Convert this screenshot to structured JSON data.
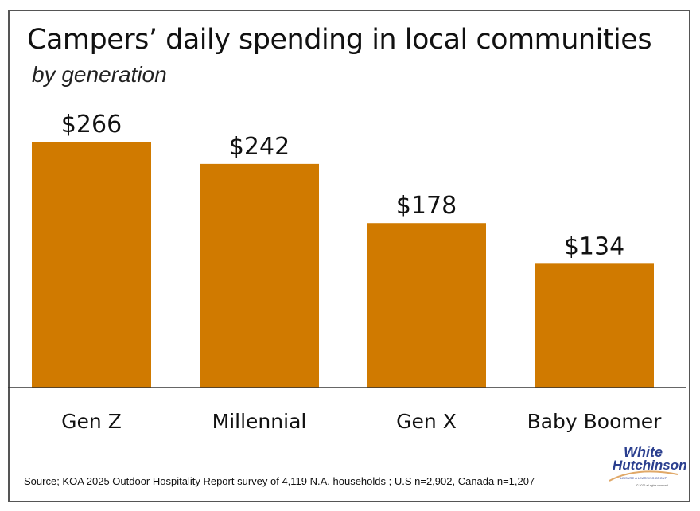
{
  "chart_data": {
    "type": "bar",
    "title": "Campers’ daily spending in local communities",
    "subtitle": "by generation",
    "categories": [
      "Gen Z",
      "Millennial",
      "Gen X",
      "Baby Boomer"
    ],
    "values": [
      266,
      242,
      178,
      134
    ],
    "data_labels": [
      "$266",
      "$242",
      "$178",
      "$134"
    ],
    "xlabel": "",
    "ylabel": "",
    "ylim": [
      0,
      266
    ],
    "grid": false,
    "bar_color": "#D07A00"
  },
  "source": "Source; KOA 2025 Outdoor Hospitality Report survey of 4,119 N.A. households ; U.S n=2,902, Canada n=1,207",
  "logo": {
    "line1": "White",
    "line2": "Hutchinson",
    "tagline": "LEISURE & LEARNING GROUP",
    "copyright": "© 2026 all rights reserved"
  }
}
